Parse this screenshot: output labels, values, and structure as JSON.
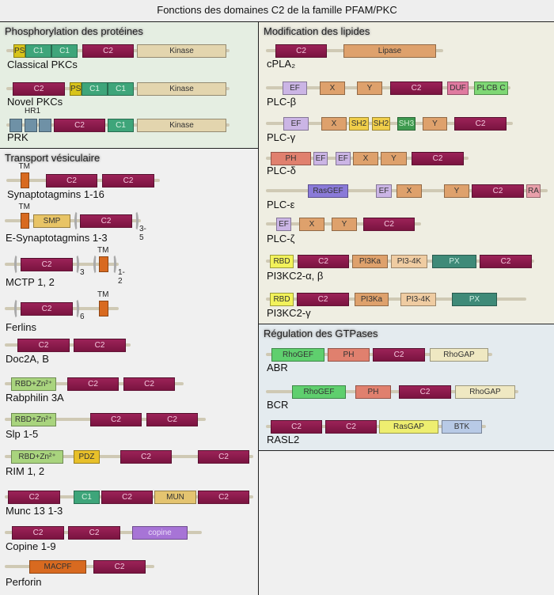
{
  "title": "Fonctions des domaines C2 de la famille PFAM/PKC",
  "domain_colors": {
    "C2": "#8e1b4e",
    "C1": "#3ea57a",
    "PS": "#d8c41a",
    "Kinase": "#e3d5ae",
    "HR1": "#6f91a6",
    "TM": "#d86a20",
    "SMP": "#e8c466",
    "RBDZn": "#a9d47e",
    "PDZ": "#e8c02a",
    "MUN": "#e4c470",
    "copine": "#a774d6",
    "MACPF": "#d86a20",
    "Lipase": "#dea16c",
    "EF": "#cbb5e5",
    "XY": "#dea16c",
    "DUF": "#e07aa0",
    "PLCBC": "#7ed774",
    "SH2": "#f0ce4a",
    "SH3": "#3f9a50",
    "PH": "#e0806e",
    "RasGEF": "#8a7ad8",
    "RA": "#e8a0aa",
    "RBD": "#f2f25a",
    "PI3Ka": "#dea16c",
    "PI34K": "#efcca2",
    "PX": "#3f8a78",
    "RhoGEF": "#5fcf6e",
    "RhoGAP": "#efe8c2",
    "RasGAP": "#eeee70",
    "BTK": "#b8cae6"
  },
  "panels": [
    {
      "title": "Phosphorylation des protéines",
      "proteins": [
        {
          "name": "Classical PKCs",
          "domains": [
            {
              "label": "PS",
              "type": "PS"
            },
            {
              "label": "C1",
              "type": "C1"
            },
            {
              "label": "C1",
              "type": "C1"
            },
            {
              "label": "C2",
              "type": "C2"
            },
            {
              "label": "Kinase",
              "type": "Kinase"
            }
          ]
        },
        {
          "name": "Novel PKCs",
          "domains": [
            {
              "label": "C2",
              "type": "C2"
            },
            {
              "label": "PS",
              "type": "PS"
            },
            {
              "label": "C1",
              "type": "C1"
            },
            {
              "label": "C1",
              "type": "C1"
            },
            {
              "label": "Kinase",
              "type": "Kinase"
            }
          ]
        },
        {
          "name": "PRK",
          "domains": [
            {
              "label": "",
              "type": "HR1"
            },
            {
              "label": "",
              "type": "HR1",
              "above": "HR1"
            },
            {
              "label": "",
              "type": "HR1"
            },
            {
              "label": "C2",
              "type": "C2"
            },
            {
              "label": "C1",
              "type": "C1"
            },
            {
              "label": "Kinase",
              "type": "Kinase"
            }
          ]
        }
      ]
    },
    {
      "title": "Transport vésiculaire",
      "proteins": [
        {
          "name": "Synaptotagmins 1-16",
          "domains": [
            {
              "label": "",
              "type": "TM",
              "above": "TM"
            },
            {
              "label": "C2",
              "type": "C2"
            },
            {
              "label": "C2",
              "type": "C2"
            }
          ]
        },
        {
          "name": "E-Synaptotagmins 1-3",
          "domains": [
            {
              "label": "",
              "type": "TM",
              "above": "TM"
            },
            {
              "label": "SMP",
              "type": "SMP"
            },
            {
              "label": "C2",
              "type": "C2"
            }
          ],
          "repeats": [
            "3-5"
          ]
        },
        {
          "name": "MCTP 1, 2",
          "domains": [
            {
              "label": "C2",
              "type": "C2"
            },
            {
              "label": "",
              "type": "TM",
              "above": "TM"
            }
          ],
          "repeats": [
            "3",
            "1-2"
          ]
        },
        {
          "name": "Ferlins",
          "domains": [
            {
              "label": "C2",
              "type": "C2"
            },
            {
              "label": "",
              "type": "TM",
              "above": "TM"
            }
          ],
          "repeats": [
            "6"
          ]
        },
        {
          "name": "Doc2A, B",
          "domains": [
            {
              "label": "C2",
              "type": "C2"
            },
            {
              "label": "C2",
              "type": "C2"
            }
          ]
        },
        {
          "name": "Rabphilin 3A",
          "domains": [
            {
              "label": "RBD+Zn²⁺",
              "type": "RBDZn"
            },
            {
              "label": "C2",
              "type": "C2"
            },
            {
              "label": "C2",
              "type": "C2"
            }
          ]
        },
        {
          "name": "Slp 1-5",
          "domains": [
            {
              "label": "RBD+Zn²⁺",
              "type": "RBDZn"
            },
            {
              "label": "C2",
              "type": "C2"
            },
            {
              "label": "C2",
              "type": "C2"
            }
          ]
        },
        {
          "name": "RIM 1, 2",
          "domains": [
            {
              "label": "RBD+Zn²⁺",
              "type": "RBDZn"
            },
            {
              "label": "PDZ",
              "type": "PDZ"
            },
            {
              "label": "C2",
              "type": "C2"
            },
            {
              "label": "C2",
              "type": "C2"
            }
          ]
        },
        {
          "name": "Munc 13 1-3",
          "domains": [
            {
              "label": "C2",
              "type": "C2"
            },
            {
              "label": "C1",
              "type": "C1"
            },
            {
              "label": "C2",
              "type": "C2"
            },
            {
              "label": "MUN",
              "type": "MUN"
            },
            {
              "label": "C2",
              "type": "C2"
            }
          ]
        },
        {
          "name": "Copine 1-9",
          "domains": [
            {
              "label": "C2",
              "type": "C2"
            },
            {
              "label": "C2",
              "type": "C2"
            },
            {
              "label": "copine",
              "type": "copine"
            }
          ]
        },
        {
          "name": "Perforin",
          "domains": [
            {
              "label": "MACPF",
              "type": "MACPF"
            },
            {
              "label": "C2",
              "type": "C2"
            }
          ]
        }
      ]
    },
    {
      "title": "Modification des lipides",
      "proteins": [
        {
          "name": "cPLA₂",
          "domains": [
            {
              "label": "C2",
              "type": "C2"
            },
            {
              "label": "Lipase",
              "type": "Lipase"
            }
          ]
        },
        {
          "name": "PLC-β",
          "domains": [
            {
              "label": "EF",
              "type": "EF"
            },
            {
              "label": "X",
              "type": "XY"
            },
            {
              "label": "Y",
              "type": "XY"
            },
            {
              "label": "C2",
              "type": "C2"
            },
            {
              "label": "DUF",
              "type": "DUF"
            },
            {
              "label": "PLCB C",
              "type": "PLCBC"
            }
          ]
        },
        {
          "name": "PLC-γ",
          "domains": [
            {
              "label": "EF",
              "type": "EF"
            },
            {
              "label": "X",
              "type": "XY"
            },
            {
              "label": "SH2",
              "type": "SH2"
            },
            {
              "label": "SH2",
              "type": "SH2"
            },
            {
              "label": "SH3",
              "type": "SH3"
            },
            {
              "label": "Y",
              "type": "XY"
            },
            {
              "label": "C2",
              "type": "C2"
            }
          ]
        },
        {
          "name": "PLC-δ",
          "domains": [
            {
              "label": "PH",
              "type": "PH"
            },
            {
              "label": "EF",
              "type": "EF"
            },
            {
              "label": "EF",
              "type": "EF"
            },
            {
              "label": "X",
              "type": "XY"
            },
            {
              "label": "Y",
              "type": "XY"
            },
            {
              "label": "C2",
              "type": "C2"
            }
          ]
        },
        {
          "name": "PLC-ε",
          "domains": [
            {
              "label": "RasGEF",
              "type": "RasGEF"
            },
            {
              "label": "EF",
              "type": "EF"
            },
            {
              "label": "X",
              "type": "XY"
            },
            {
              "label": "Y",
              "type": "XY"
            },
            {
              "label": "C2",
              "type": "C2"
            },
            {
              "label": "RA",
              "type": "RA"
            }
          ]
        },
        {
          "name": "PLC-ζ",
          "domains": [
            {
              "label": "EF",
              "type": "EF"
            },
            {
              "label": "X",
              "type": "XY"
            },
            {
              "label": "Y",
              "type": "XY"
            },
            {
              "label": "C2",
              "type": "C2"
            }
          ]
        },
        {
          "name": "PI3KC2-α, β",
          "domains": [
            {
              "label": "RBD",
              "type": "RBD"
            },
            {
              "label": "C2",
              "type": "C2"
            },
            {
              "label": "PI3Ka",
              "type": "PI3Ka"
            },
            {
              "label": "PI3-4K",
              "type": "PI34K"
            },
            {
              "label": "PX",
              "type": "PX"
            },
            {
              "label": "C2",
              "type": "C2"
            }
          ]
        },
        {
          "name": "PI3KC2-γ",
          "domains": [
            {
              "label": "RBD",
              "type": "RBD"
            },
            {
              "label": "C2",
              "type": "C2"
            },
            {
              "label": "PI3Ka",
              "type": "PI3Ka"
            },
            {
              "label": "PI3-4K",
              "type": "PI34K"
            },
            {
              "label": "PX",
              "type": "PX"
            }
          ]
        }
      ]
    },
    {
      "title": "Régulation des GTPases",
      "proteins": [
        {
          "name": "ABR",
          "domains": [
            {
              "label": "RhoGEF",
              "type": "RhoGEF"
            },
            {
              "label": "PH",
              "type": "PH"
            },
            {
              "label": "C2",
              "type": "C2"
            },
            {
              "label": "RhoGAP",
              "type": "RhoGAP"
            }
          ]
        },
        {
          "name": "BCR",
          "domains": [
            {
              "label": "RhoGEF",
              "type": "RhoGEF"
            },
            {
              "label": "PH",
              "type": "PH"
            },
            {
              "label": "C2",
              "type": "C2"
            },
            {
              "label": "RhoGAP",
              "type": "RhoGAP"
            }
          ]
        },
        {
          "name": "RASL2",
          "domains": [
            {
              "label": "C2",
              "type": "C2"
            },
            {
              "label": "C2",
              "type": "C2"
            },
            {
              "label": "RasGAP",
              "type": "RasGAP"
            },
            {
              "label": "BTK",
              "type": "BTK"
            }
          ]
        }
      ]
    }
  ]
}
